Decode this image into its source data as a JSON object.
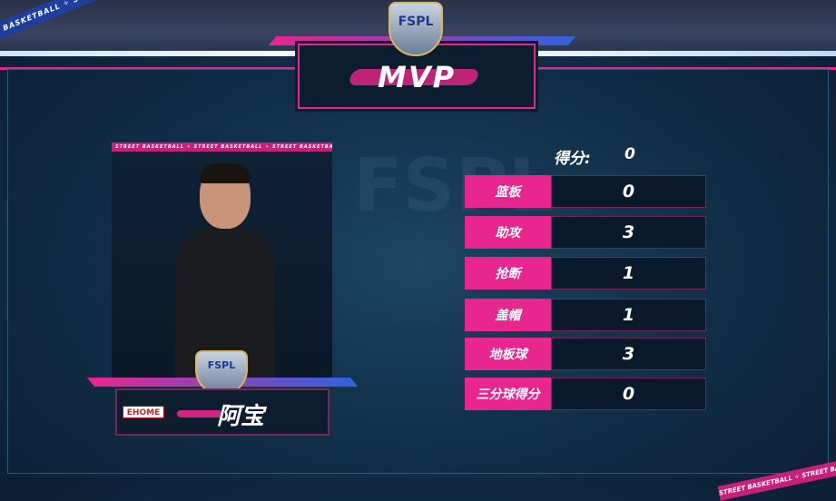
{
  "banner": {
    "ribbon_text": "STREET BASKETBALL ✧ STREET BASKETBALL ✧ STREET BASKETBALL ✧ STREET BASKETBALL"
  },
  "title": "MVP",
  "league_badge": "FSPL",
  "player": {
    "name": "阿宝",
    "team": "EHOME",
    "strip_text": "STREET BASKETBALL ✧ STREET BASKETBALL ✧ STREET BASKETBALL ✧ STREET BASKETBALL"
  },
  "score": {
    "label": "得分:",
    "value": "0"
  },
  "stats": [
    {
      "label": "篮板",
      "value": "0"
    },
    {
      "label": "助攻",
      "value": "3"
    },
    {
      "label": "抢断",
      "value": "1"
    },
    {
      "label": "盖帽",
      "value": "1"
    },
    {
      "label": "地板球",
      "value": "3"
    },
    {
      "label": "三分球得分",
      "value": "0"
    }
  ],
  "colors": {
    "accent": "#e8268e",
    "panel": "#0a1a2c",
    "background": "#12304a"
  }
}
